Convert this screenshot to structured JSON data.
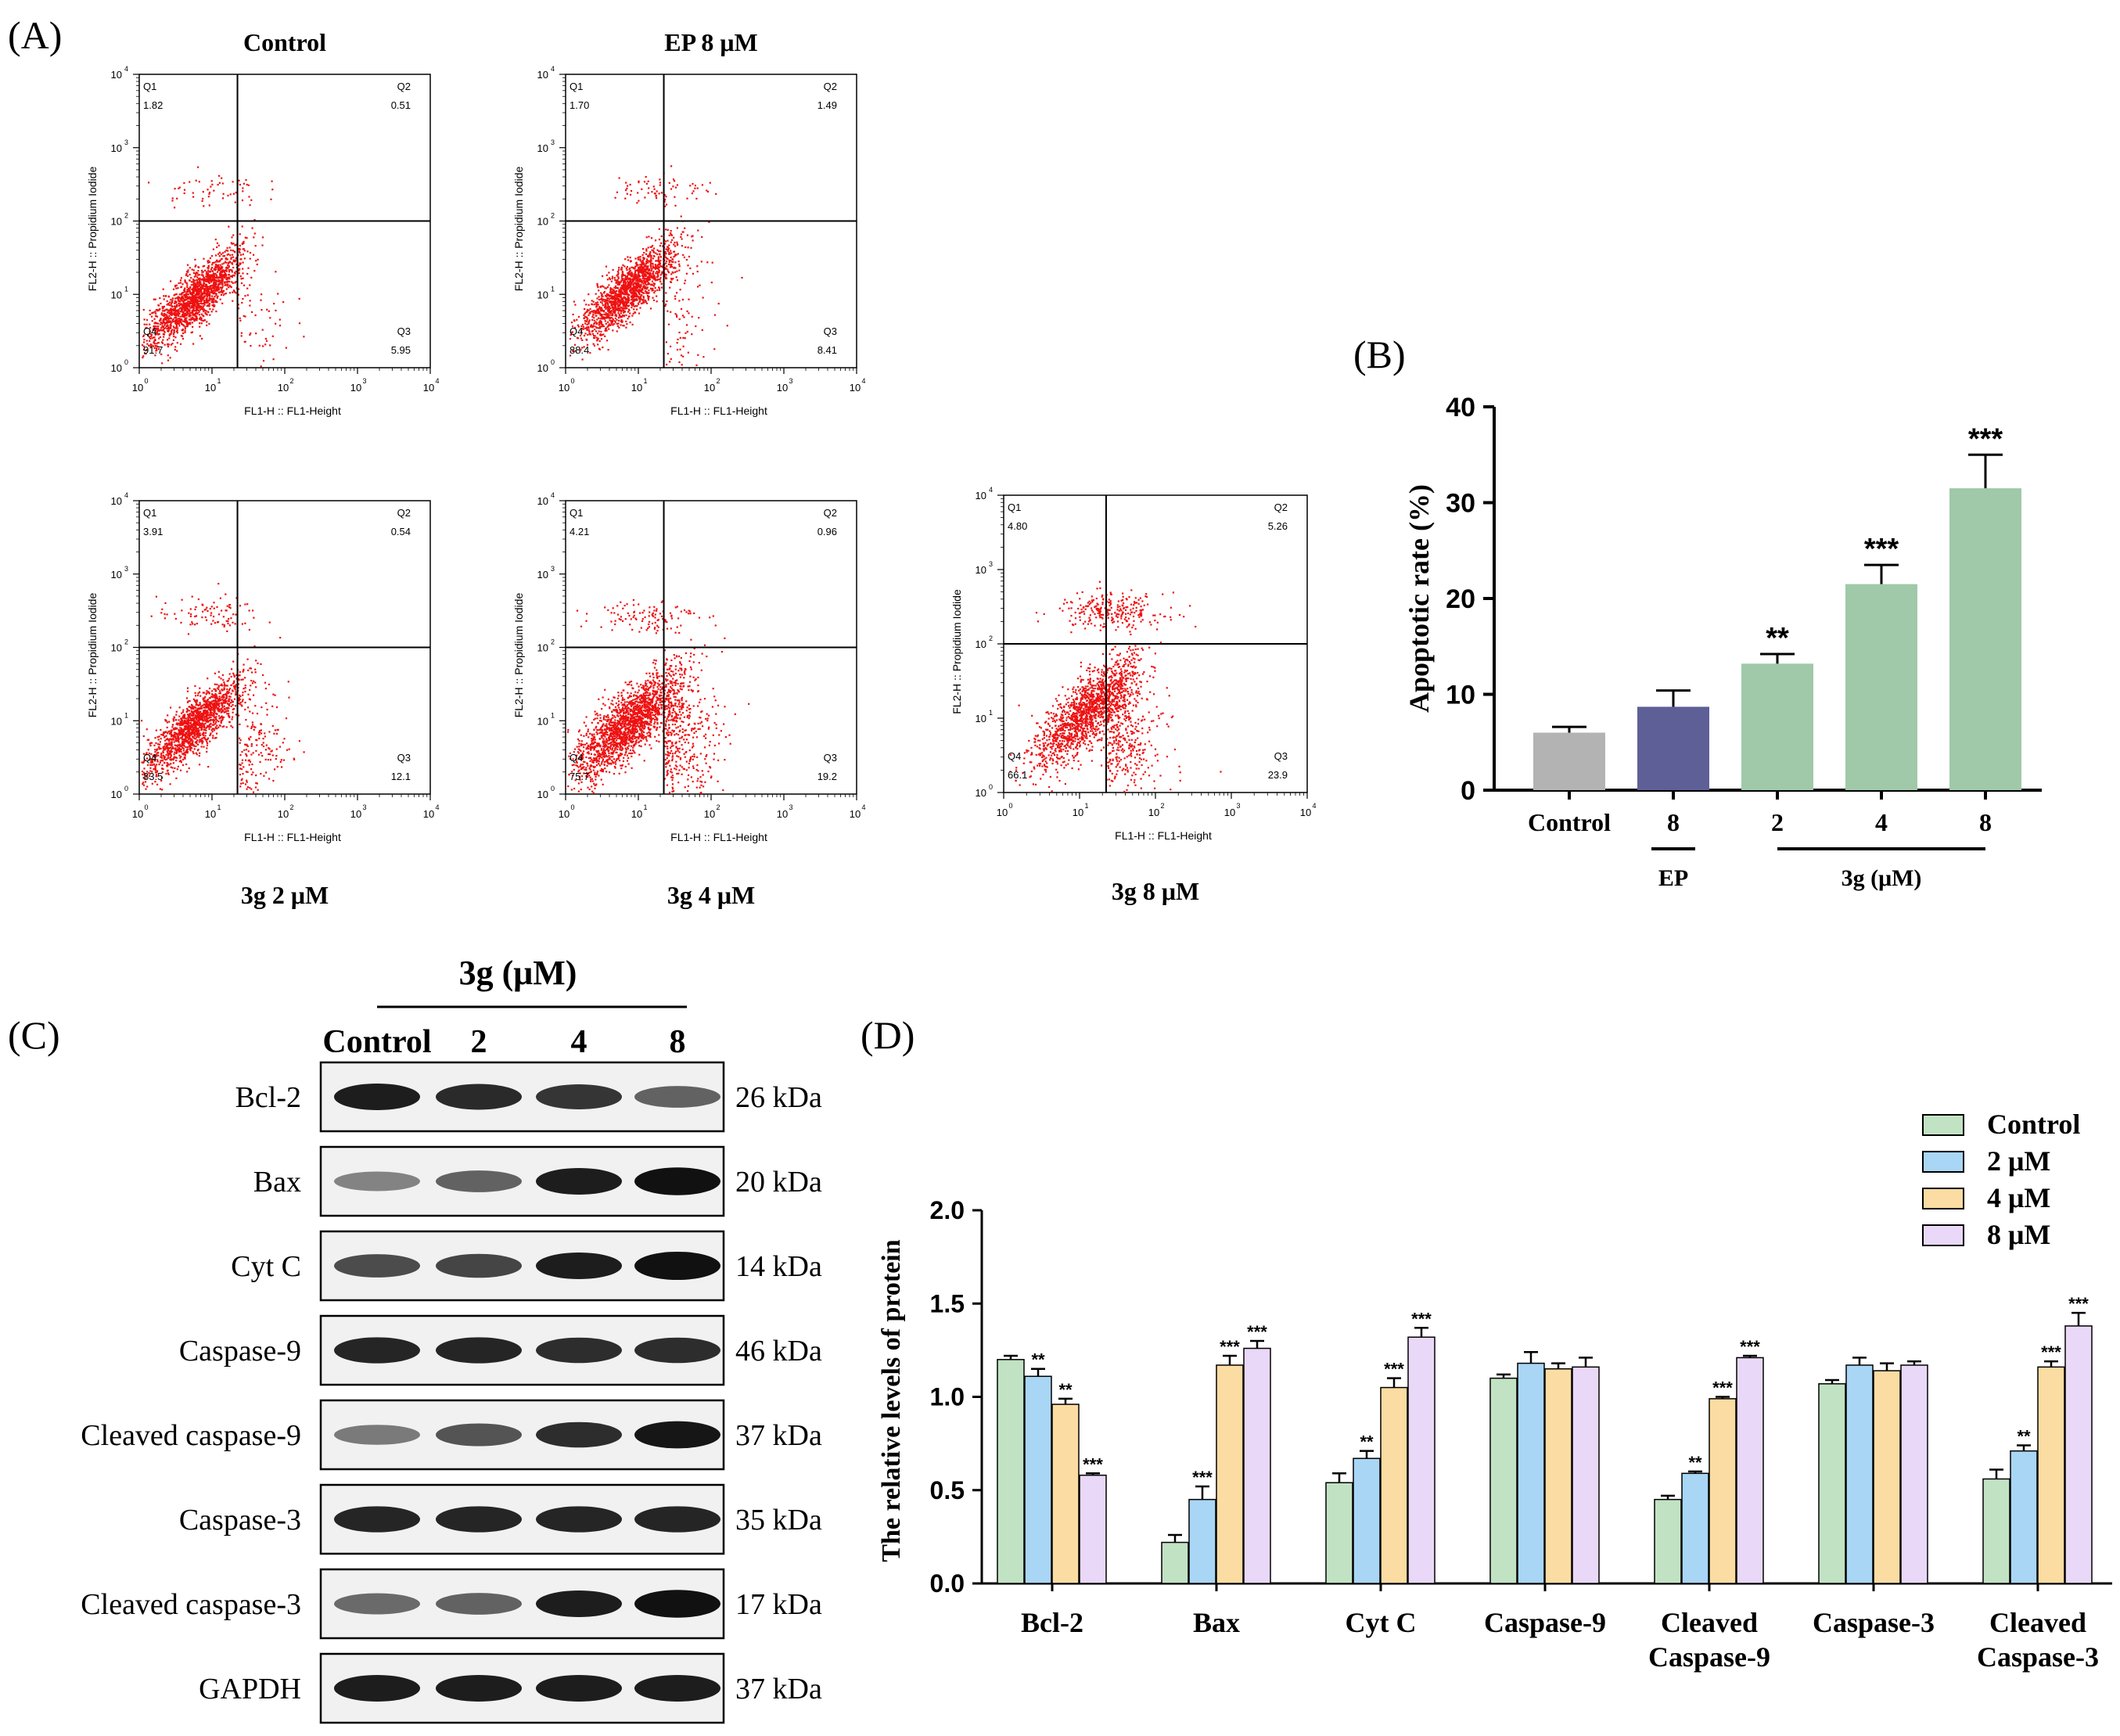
{
  "panel_labels": {
    "A": "(A)",
    "B": "(B)",
    "C": "(C)",
    "D": "(D)"
  },
  "flow": {
    "x_axis_label": "FL1-H :: FL1-Height",
    "y_axis_label": "FL2-H :: Propidium Iodide",
    "tick_labels": [
      "10",
      "10",
      "10",
      "10",
      "10"
    ],
    "tick_exponents": [
      "0",
      "1",
      "2",
      "3",
      "4"
    ],
    "plots": [
      {
        "title": "Control",
        "q1_label": "Q1",
        "q1": "1.82",
        "q2_label": "Q2",
        "q2": "0.51",
        "q3_label": "Q3",
        "q3": "5.95",
        "q4_label": "Q4",
        "q4": "91.7"
      },
      {
        "title": "EP 8 μM",
        "q1_label": "Q1",
        "q1": "1.70",
        "q2_label": "Q2",
        "q2": "1.49",
        "q3_label": "Q3",
        "q3": "8.41",
        "q4_label": "Q4",
        "q4": "88.4"
      },
      {
        "title": "3g 2 μM",
        "q1_label": "Q1",
        "q1": "3.91",
        "q2_label": "Q2",
        "q2": "0.54",
        "q3_label": "Q3",
        "q3": "12.1",
        "q4_label": "Q4",
        "q4": "83.5"
      },
      {
        "title": "3g 4 μM",
        "q1_label": "Q1",
        "q1": "4.21",
        "q2_label": "Q2",
        "q2": "0.96",
        "q3_label": "Q3",
        "q3": "19.2",
        "q4_label": "Q4",
        "q4": "75.7"
      },
      {
        "title": "3g 8 μM",
        "q1_label": "Q1",
        "q1": "4.80",
        "q2_label": "Q2",
        "q2": "5.26",
        "q3_label": "Q3",
        "q3": "23.9",
        "q4_label": "Q4",
        "q4": "66.1"
      }
    ]
  },
  "western": {
    "header": "3g (μM)",
    "lanes": [
      "Control",
      "2",
      "4",
      "8"
    ],
    "blots": [
      {
        "name": "Bcl-2",
        "kda": "26 kDa",
        "intensity": [
          1.0,
          0.92,
          0.85,
          0.55
        ]
      },
      {
        "name": "Bax",
        "kda": "20 kDa",
        "intensity": [
          0.35,
          0.55,
          1.0,
          1.1
        ]
      },
      {
        "name": "Cyt C",
        "kda": "14 kDa",
        "intensity": [
          0.7,
          0.75,
          1.0,
          1.15
        ]
      },
      {
        "name": "Caspase-9",
        "kda": "46 kDa",
        "intensity": [
          0.95,
          0.95,
          0.9,
          0.9
        ]
      },
      {
        "name": "Cleaved caspase-9",
        "kda": "37 kDa",
        "intensity": [
          0.4,
          0.65,
          0.9,
          1.05
        ]
      },
      {
        "name": "Caspase-3",
        "kda": "35 kDa",
        "intensity": [
          0.95,
          0.95,
          0.95,
          0.95
        ]
      },
      {
        "name": "Cleaved caspase-3",
        "kda": "17 kDa",
        "intensity": [
          0.5,
          0.55,
          1.0,
          1.1
        ]
      },
      {
        "name": "GAPDH",
        "kda": "37 kDa",
        "intensity": [
          1.0,
          1.0,
          1.0,
          1.0
        ]
      }
    ]
  },
  "colors": {
    "scatter": "#ee1111",
    "b_control": "#b3b3b3",
    "b_ep": "#5e5f96",
    "b_3g": "#9fc9a9",
    "d_control": "#c2e2c4",
    "d_2": "#a9d6f5",
    "d_4": "#fbdca2",
    "d_8": "#ead8f8"
  },
  "chart_data": [
    {
      "type": "bar",
      "title": "(B)",
      "ylabel": "Apoptotic rate (%)",
      "ylim": [
        0,
        40
      ],
      "yticks": [
        "0",
        "10",
        "20",
        "30",
        "40"
      ],
      "categories": [
        "Control",
        "8",
        "2",
        "4",
        "8"
      ],
      "values": [
        6.0,
        8.7,
        13.2,
        21.5,
        31.5
      ],
      "errors": [
        0.6,
        1.7,
        1.0,
        2.0,
        3.5
      ],
      "significance": [
        "",
        "",
        "**",
        "***",
        "***"
      ],
      "group_labels": [
        {
          "label": "EP",
          "from": 1,
          "to": 1
        },
        {
          "label": "3g (μM)",
          "from": 2,
          "to": 4
        }
      ]
    },
    {
      "type": "bar",
      "title": "(D)",
      "ylabel": "The relative levels of protein",
      "ylim": [
        0,
        2.0
      ],
      "yticks": [
        "0.0",
        "0.5",
        "1.0",
        "1.5",
        "2.0"
      ],
      "categories": [
        "Bcl-2",
        "Bax",
        "Cyt C",
        "Caspase-9",
        "Cleaved\nCaspase-9",
        "Caspase-3",
        "Cleaved\nCaspase-3"
      ],
      "series": [
        {
          "name": "Control",
          "values": [
            1.2,
            0.22,
            0.54,
            1.1,
            0.45,
            1.07,
            0.56
          ],
          "errors": [
            0.02,
            0.04,
            0.05,
            0.02,
            0.02,
            0.02,
            0.05
          ],
          "sig": [
            "",
            "",
            "",
            "",
            "",
            "",
            ""
          ]
        },
        {
          "name": "2 μM",
          "values": [
            1.11,
            0.45,
            0.67,
            1.18,
            0.59,
            1.17,
            0.71
          ],
          "errors": [
            0.04,
            0.07,
            0.04,
            0.06,
            0.01,
            0.04,
            0.03
          ],
          "sig": [
            "**",
            "***",
            "**",
            "",
            "**",
            "",
            "**"
          ]
        },
        {
          "name": "4 μM",
          "values": [
            0.96,
            1.17,
            1.05,
            1.15,
            0.99,
            1.14,
            1.16
          ],
          "errors": [
            0.03,
            0.05,
            0.05,
            0.03,
            0.01,
            0.04,
            0.03
          ],
          "sig": [
            "**",
            "***",
            "***",
            "",
            "***",
            "",
            "***"
          ]
        },
        {
          "name": "8 μM",
          "values": [
            0.58,
            1.26,
            1.32,
            1.16,
            1.21,
            1.17,
            1.38
          ],
          "errors": [
            0.01,
            0.04,
            0.05,
            0.05,
            0.01,
            0.02,
            0.07
          ],
          "sig": [
            "***",
            "***",
            "***",
            "",
            "***",
            "",
            "***"
          ]
        }
      ]
    }
  ]
}
